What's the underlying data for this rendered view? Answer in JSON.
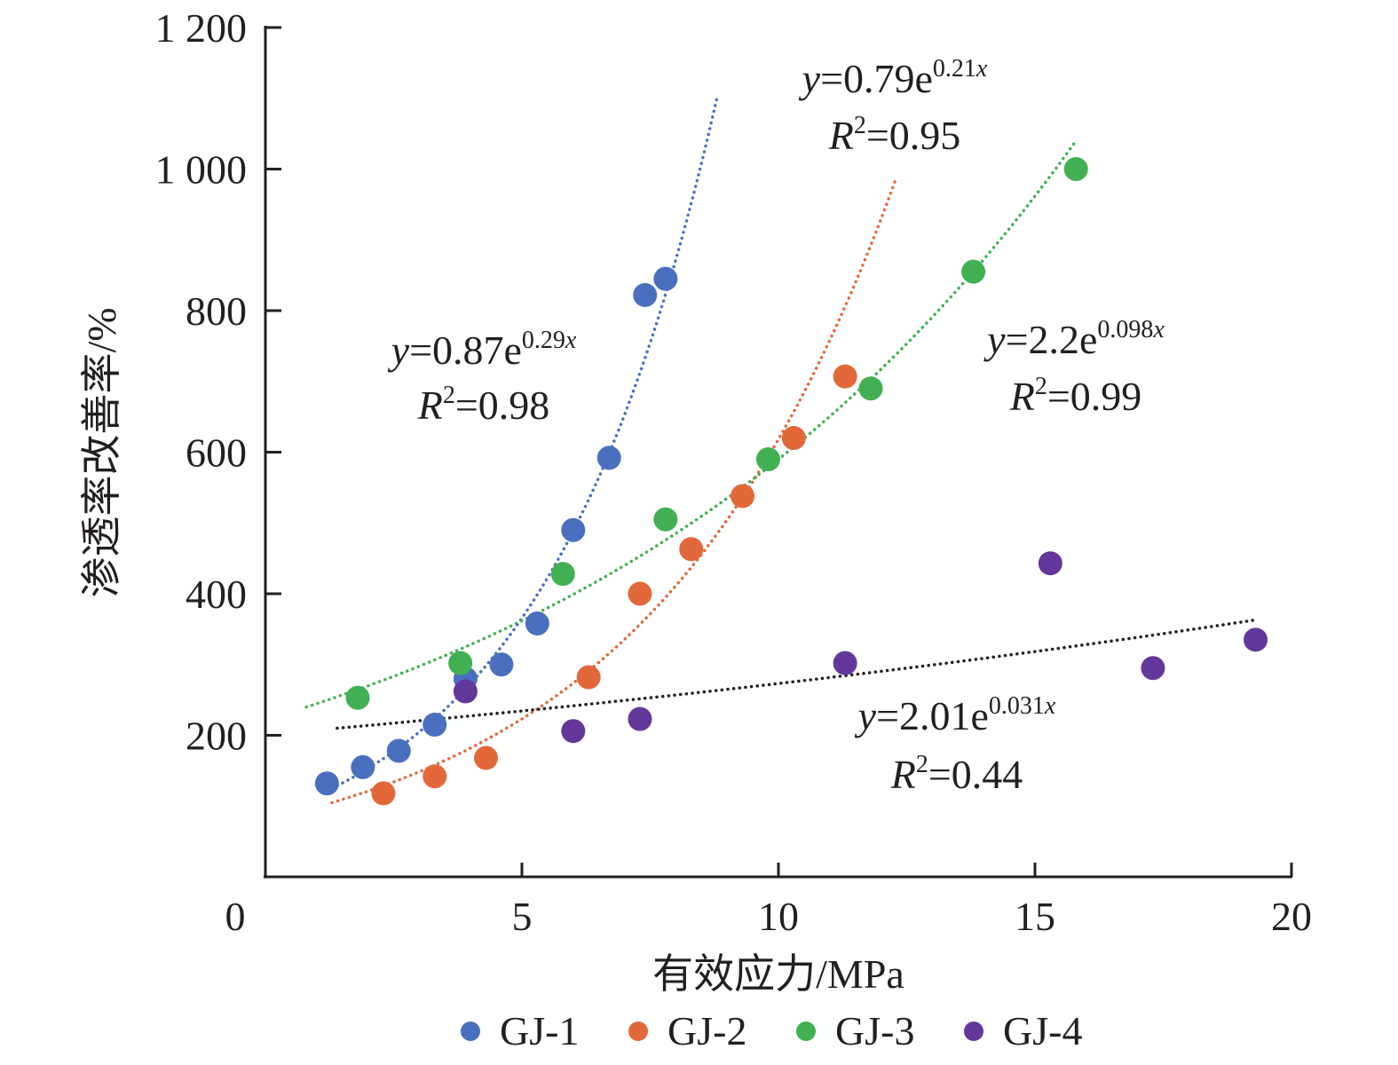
{
  "chart_data": {
    "type": "scatter",
    "title": "",
    "xlabel": "有效应力/MPa",
    "ylabel": "渗透率改善率/%",
    "xlim": [
      0,
      20
    ],
    "ylim": [
      0,
      1200
    ],
    "xticks": [
      0,
      5,
      10,
      15,
      20
    ],
    "xtick_labels": [
      "0",
      "5",
      "10",
      "15",
      "20"
    ],
    "yticks": [
      200,
      400,
      600,
      800,
      1000,
      1200
    ],
    "ytick_labels": [
      "200",
      "400",
      "600",
      "800",
      "1 000",
      "1 200"
    ],
    "grid": false,
    "legend_position": "bottom",
    "series": [
      {
        "name": "GJ-1",
        "color": "#4a6fbf",
        "points": [
          [
            1.2,
            132
          ],
          [
            1.9,
            155
          ],
          [
            2.6,
            178
          ],
          [
            3.3,
            215
          ],
          [
            3.9,
            280
          ],
          [
            4.6,
            300
          ],
          [
            5.3,
            358
          ],
          [
            6.0,
            490
          ],
          [
            6.7,
            592
          ],
          [
            7.4,
            822
          ],
          [
            7.8,
            845
          ]
        ],
        "trendline": {
          "type": "exponential",
          "x_range": [
            1.3,
            8.8
          ],
          "y_range": [
            125,
            1100
          ],
          "dotted": true
        },
        "equation": {
          "prefix": "=0.87e",
          "exponent": "0.29",
          "r2": "=0.98"
        }
      },
      {
        "name": "GJ-2",
        "color": "#e2683a",
        "points": [
          [
            2.3,
            118
          ],
          [
            3.3,
            142
          ],
          [
            4.3,
            168
          ],
          [
            6.3,
            282
          ],
          [
            7.3,
            400
          ],
          [
            8.3,
            463
          ],
          [
            9.3,
            538
          ],
          [
            10.3,
            620
          ],
          [
            11.3,
            707
          ]
        ],
        "trendline": {
          "type": "exponential",
          "x_range": [
            1.3,
            12.3
          ],
          "y_range": [
            105,
            988
          ],
          "dotted": true
        },
        "equation": {
          "prefix": "=0.79e",
          "exponent": "0.21",
          "r2": "=0.95"
        }
      },
      {
        "name": "GJ-3",
        "color": "#41b052",
        "points": [
          [
            1.8,
            253
          ],
          [
            3.8,
            302
          ],
          [
            5.8,
            428
          ],
          [
            7.8,
            505
          ],
          [
            9.8,
            590
          ],
          [
            11.8,
            690
          ],
          [
            13.8,
            855
          ],
          [
            15.8,
            1000
          ]
        ],
        "trendline": {
          "type": "exponential",
          "x_range": [
            0.8,
            15.8
          ],
          "y_range": [
            240,
            1040
          ],
          "dotted": true
        },
        "equation": {
          "prefix": "=2.2e",
          "exponent": "0.098",
          "r2": "=0.99"
        }
      },
      {
        "name": "GJ-4",
        "color": "#64379a",
        "points": [
          [
            3.9,
            262
          ],
          [
            6.0,
            206
          ],
          [
            7.3,
            223
          ],
          [
            11.3,
            302
          ],
          [
            15.3,
            443
          ],
          [
            17.3,
            295
          ],
          [
            19.3,
            335
          ]
        ],
        "trendline": {
          "type": "exponential",
          "x_range": [
            1.4,
            19.3
          ],
          "y_range": [
            210,
            363
          ],
          "dotted": true,
          "color": "#231f20"
        },
        "equation": {
          "prefix": "=2.01e",
          "exponent": "0.031",
          "r2": "=0.44"
        }
      }
    ],
    "equation_symbols": {
      "y": "y",
      "x": "x",
      "R": "R",
      "sq": "2"
    }
  }
}
